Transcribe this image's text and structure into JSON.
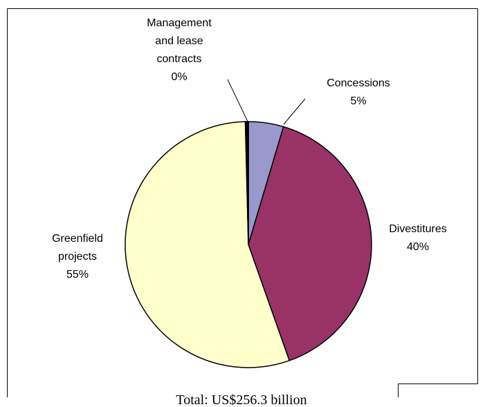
{
  "chart_data": {
    "type": "pie",
    "slices": [
      {
        "label_lines": [
          "Concessions"
        ],
        "pct_label": "5%",
        "value": 4.6,
        "color": "#9999cc"
      },
      {
        "label_lines": [
          "Divestitures"
        ],
        "pct_label": "40%",
        "value": 40.0,
        "color": "#993366"
      },
      {
        "label_lines": [
          "Greenfield",
          "projects"
        ],
        "pct_label": "55%",
        "value": 55.0,
        "color": "#ffffcc"
      },
      {
        "label_lines": [
          "Management",
          "and lease",
          "contracts"
        ],
        "pct_label": "0%",
        "value": 0.4,
        "color": "#000000"
      }
    ],
    "total_label": "Total: US$256.3 billion"
  }
}
